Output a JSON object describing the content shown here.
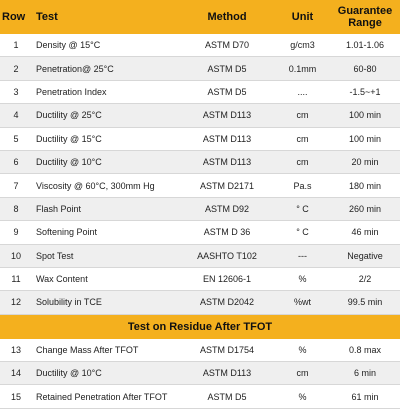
{
  "header": {
    "row": "Row",
    "test": "Test",
    "method": "Method",
    "unit": "Unit",
    "range": "Guarantee\nRange"
  },
  "rows": [
    {
      "no": "1",
      "test": "Density @ 15°C",
      "method": "ASTM D70",
      "unit": "g/cm3",
      "range": "1.01-1.06"
    },
    {
      "no": "2",
      "test": "Penetration@ 25°C",
      "method": "ASTM D5",
      "unit": "0.1mm",
      "range": "60-80"
    },
    {
      "no": "3",
      "test": "Penetration Index",
      "method": "ASTM D5",
      "unit": "....",
      "range": "-1.5~+1"
    },
    {
      "no": "4",
      "test": "Ductility @ 25°C",
      "method": "ASTM D113",
      "unit": "cm",
      "range": "100 min"
    },
    {
      "no": "5",
      "test": "Ductility @ 15°C",
      "method": "ASTM D113",
      "unit": "cm",
      "range": "100 min"
    },
    {
      "no": "6",
      "test": "Ductility @ 10°C",
      "method": "ASTM D113",
      "unit": "cm",
      "range": "20 min"
    },
    {
      "no": "7",
      "test": "Viscosity @ 60°C, 300mm Hg",
      "method": "ASTM D2171",
      "unit": "Pa.s",
      "range": "180 min"
    },
    {
      "no": "8",
      "test": "Flash Point",
      "method": "ASTM D92",
      "unit": "° C",
      "range": "260 min"
    },
    {
      "no": "9",
      "test": "Softening Point",
      "method": "ASTM D 36",
      "unit": "° C",
      "range": "46 min"
    },
    {
      "no": "10",
      "test": "Spot Test",
      "method": "AASHTO T102",
      "unit": "---",
      "range": "Negative"
    },
    {
      "no": "11",
      "test": "Wax Content",
      "method": "EN 12606-1",
      "unit": "%",
      "range": "2/2"
    },
    {
      "no": "12",
      "test": "Solubility in TCE",
      "method": "ASTM D2042",
      "unit": "%wt",
      "range": "99.5 min"
    }
  ],
  "section_title": "Test on Residue After TFOT",
  "residue_rows": [
    {
      "no": "13",
      "test": "Change Mass After TFOT",
      "method": "ASTM D1754",
      "unit": "%",
      "range": "0.8 max"
    },
    {
      "no": "14",
      "test": "Ductility @ 10°C",
      "method": "ASTM D113",
      "unit": "cm",
      "range": "6 min"
    },
    {
      "no": "15",
      "test": "Retained Penetration After TFOT",
      "method": "ASTM D5",
      "unit": "%",
      "range": "61 min"
    }
  ]
}
